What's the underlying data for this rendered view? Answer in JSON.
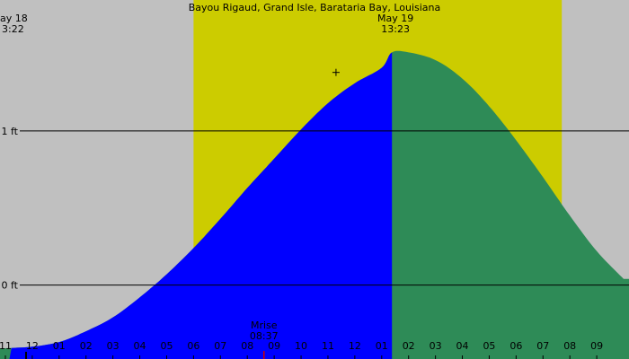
{
  "chart_data": {
    "type": "area",
    "title": "Bayou Rigaud, Grand Isle, Barataria Bay, Louisiana",
    "xlabel": "",
    "ylabel": "",
    "y_unit": "ft",
    "xlim_hours": [
      22.8,
      46.2
    ],
    "ylim": [
      -0.48,
      1.85
    ],
    "grid": true,
    "y_ticks": [
      {
        "value": 0,
        "label": "0 ft"
      },
      {
        "value": 1,
        "label": "1 ft"
      }
    ],
    "daylight_hours": [
      30.0,
      43.7
    ],
    "now_hour": 22.8,
    "date_marks": [
      {
        "hour": 22.8,
        "date": "ay 18",
        "time": "3:22"
      },
      {
        "hour": 37.38,
        "date": "May 19",
        "time": "13:23"
      }
    ],
    "moonrise": {
      "hour": 32.62,
      "label": "Mrise",
      "time": "08:37"
    },
    "tide_series": {
      "name": "",
      "x_hours": [
        23.0,
        24.0,
        25.0,
        26.0,
        27.0,
        28.0,
        29.0,
        30.0,
        31.0,
        32.0,
        33.0,
        34.0,
        35.0,
        36.0,
        37.0,
        37.38,
        38.0,
        39.0,
        40.0,
        41.0,
        42.0,
        43.0,
        44.0,
        45.0,
        46.0
      ],
      "y_ft": [
        -0.41,
        -0.4,
        -0.37,
        -0.3,
        -0.21,
        -0.08,
        0.07,
        0.24,
        0.43,
        0.63,
        0.82,
        1.01,
        1.18,
        1.31,
        1.41,
        1.51,
        1.51,
        1.46,
        1.34,
        1.16,
        0.94,
        0.7,
        0.45,
        0.22,
        0.04
      ]
    },
    "x_ticks": [
      {
        "hour": 23,
        "label": "11"
      },
      {
        "hour": 24,
        "label": "12"
      },
      {
        "hour": 25,
        "label": "01"
      },
      {
        "hour": 26,
        "label": "02"
      },
      {
        "hour": 27,
        "label": "03"
      },
      {
        "hour": 28,
        "label": "04"
      },
      {
        "hour": 29,
        "label": "05"
      },
      {
        "hour": 30,
        "label": "06"
      },
      {
        "hour": 31,
        "label": "07"
      },
      {
        "hour": 32,
        "label": "08"
      },
      {
        "hour": 33,
        "label": "09"
      },
      {
        "hour": 34,
        "label": "10"
      },
      {
        "hour": 35,
        "label": "11"
      },
      {
        "hour": 36,
        "label": "12"
      },
      {
        "hour": 37,
        "label": "01"
      },
      {
        "hour": 38,
        "label": "02"
      },
      {
        "hour": 39,
        "label": "03"
      },
      {
        "hour": 40,
        "label": "04"
      },
      {
        "hour": 41,
        "label": "05"
      },
      {
        "hour": 42,
        "label": "06"
      },
      {
        "hour": 43,
        "label": "07"
      },
      {
        "hour": 44,
        "label": "08"
      },
      {
        "hour": 45,
        "label": "09"
      }
    ],
    "colors": {
      "night_background": "#c0c0c0",
      "daylight_band": "#cccc00",
      "tide_past": "#2e8b57",
      "tide_current": "#0000ff",
      "moonrise_tick": "#cc0000",
      "axis": "#000000"
    }
  }
}
